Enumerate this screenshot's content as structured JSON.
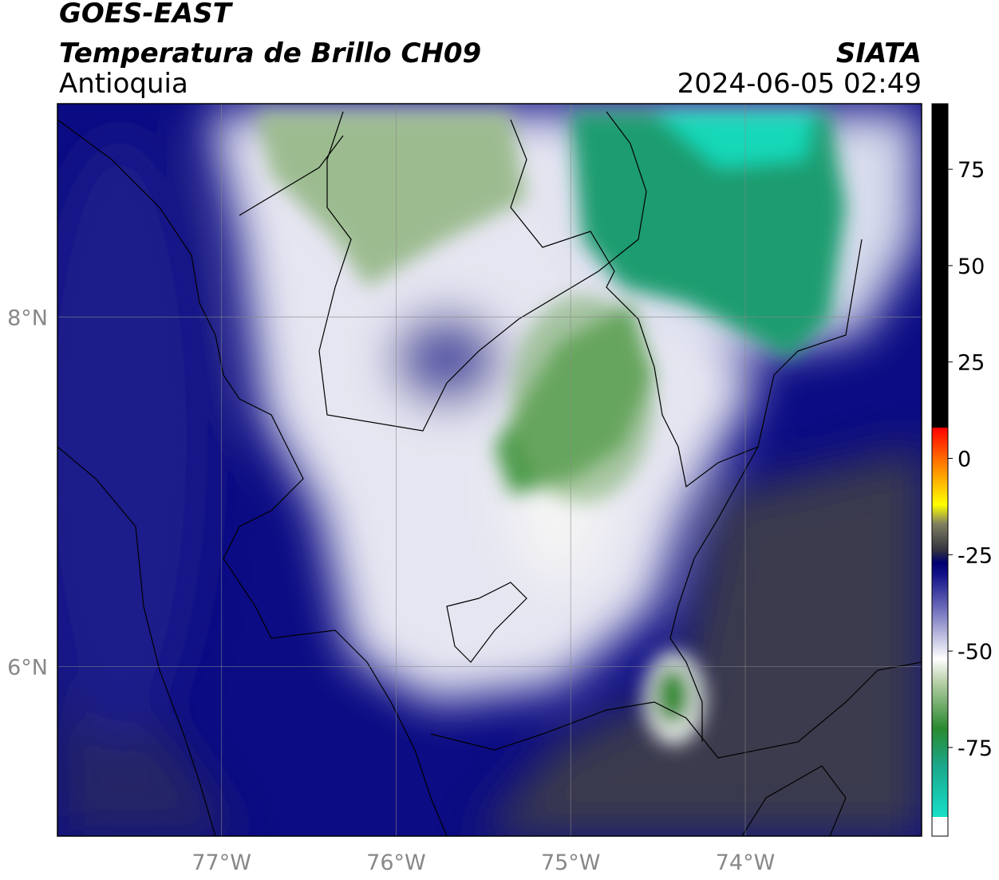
{
  "map": {
    "title": "GOES-EAST",
    "subtitle": "Temperatura de Brillo CH09",
    "region": "Antioquia",
    "source": "SIATA",
    "timestamp": "2024-06-05 02:49",
    "xlim": [
      -77.94,
      -72.99
    ],
    "ylim": [
      5.03,
      9.22
    ],
    "xticks": [
      {
        "value": -77,
        "label": "77°W"
      },
      {
        "value": -76,
        "label": "76°W"
      },
      {
        "value": -75,
        "label": "75°W"
      },
      {
        "value": -74,
        "label": "74°W"
      }
    ],
    "yticks": [
      {
        "value": 6,
        "label": "6°N"
      },
      {
        "value": 8,
        "label": "8°N"
      }
    ],
    "grid": true,
    "colorbar": {
      "lim": [
        -98,
        92
      ],
      "ticks": [
        75,
        50,
        25,
        0,
        -25,
        -50,
        -75
      ],
      "colormap": [
        [
          -98,
          "#ffffff"
        ],
        [
          -93,
          "#ffffff"
        ],
        [
          -93,
          "#18e0c8"
        ],
        [
          -80,
          "#1aa88c"
        ],
        [
          -70,
          "#2a8a30"
        ],
        [
          -58,
          "#b8d0a8"
        ],
        [
          -52,
          "#ffffff"
        ],
        [
          -40,
          "#7878c0"
        ],
        [
          -30,
          "#101088"
        ],
        [
          -27,
          "#000070"
        ],
        [
          -24,
          "#303040"
        ],
        [
          -17,
          "#808060"
        ],
        [
          -12,
          "#ffff00"
        ],
        [
          -3,
          "#ff9000"
        ],
        [
          8,
          "#ff0000"
        ],
        [
          8,
          "#000000"
        ],
        [
          92,
          "#000000"
        ]
      ]
    }
  }
}
